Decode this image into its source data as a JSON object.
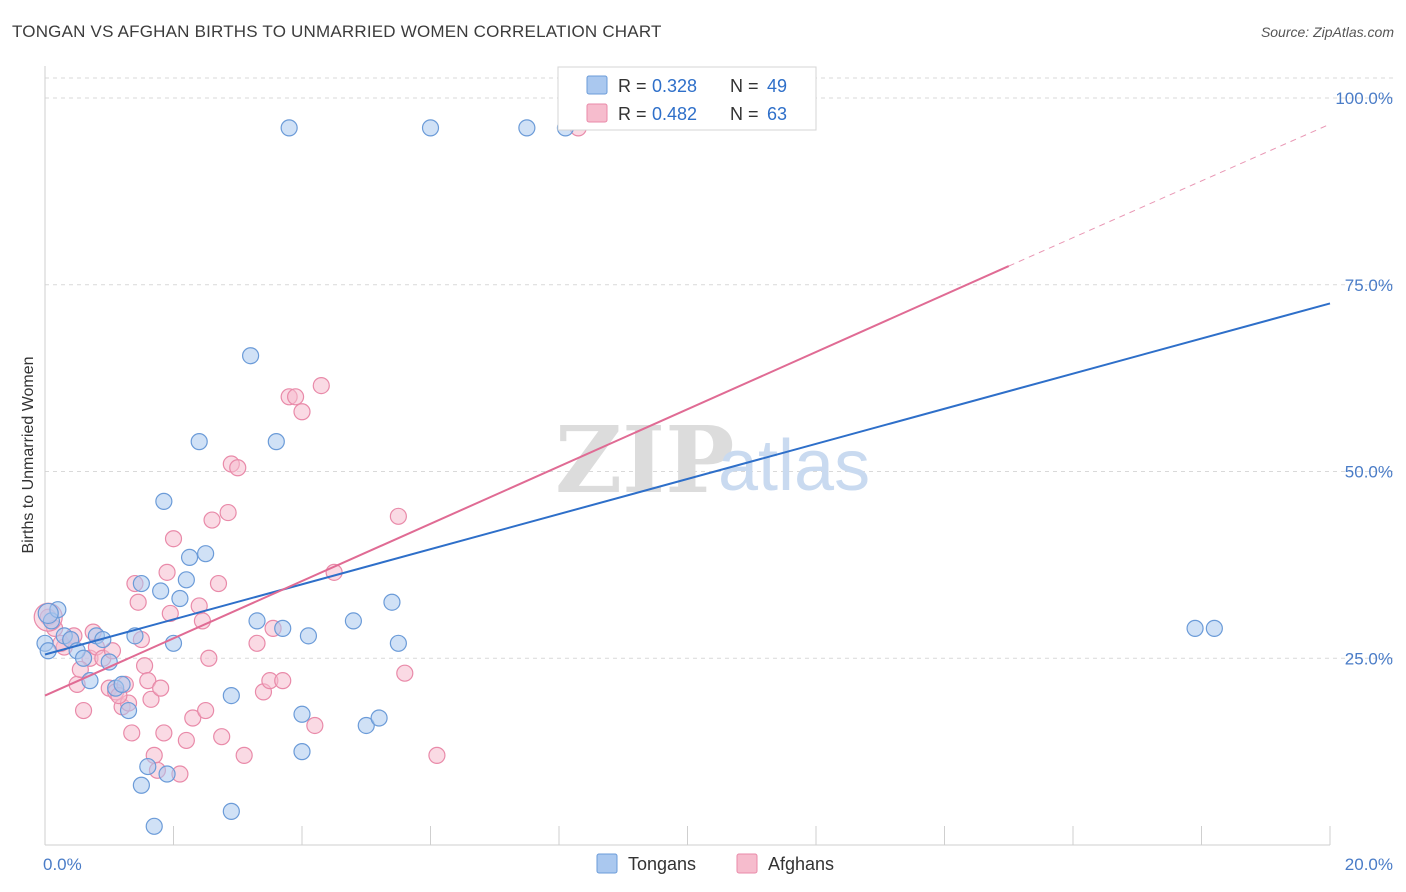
{
  "header": {
    "title": "TONGAN VS AFGHAN BIRTHS TO UNMARRIED WOMEN CORRELATION CHART",
    "source": "Source: ZipAtlas.com"
  },
  "watermark": {
    "zip": "ZIP",
    "atlas": "atlas"
  },
  "colors": {
    "tongans_fill": "#aac8ef",
    "tongans_stroke": "#6b9bd8",
    "tongans_line": "#2e6fc9",
    "afghans_fill": "#f6bccd",
    "afghans_stroke": "#e98aa9",
    "afghans_line": "#e06b94",
    "grid": "#d9d9d9",
    "tick_text": "#4a7cc7"
  },
  "legend_box": {
    "rows": [
      {
        "r_label": "R = ",
        "r_value": "0.328",
        "n_label": "N = ",
        "n_value": "49",
        "series": "tongans"
      },
      {
        "r_label": "R = ",
        "r_value": "0.482",
        "n_label": "N = ",
        "n_value": "63",
        "series": "afghans"
      }
    ]
  },
  "chart_data": {
    "type": "scatter",
    "title": "TONGAN VS AFGHAN BIRTHS TO UNMARRIED WOMEN CORRELATION CHART",
    "xlabel": "",
    "ylabel": "Births to Unmarried Women",
    "xlim": [
      0,
      20
    ],
    "ylim": [
      0,
      100
    ],
    "x_tick_labels": [
      "0.0%",
      "20.0%"
    ],
    "y_ticks": [
      25,
      50,
      75,
      100
    ],
    "y_tick_labels": [
      "25.0%",
      "50.0%",
      "75.0%",
      "100.0%"
    ],
    "grid": true,
    "legend": "bottom-center",
    "legend_labels": [
      "Tongans",
      "Afghans"
    ],
    "series": [
      {
        "name": "Tongans",
        "trend": {
          "x0": 0,
          "y0": 25.5,
          "x1": 20,
          "y1": 72.5,
          "dashed_from": null
        },
        "points": [
          [
            0.1,
            30
          ],
          [
            0.2,
            31.5
          ],
          [
            0.3,
            28
          ],
          [
            0.4,
            27.5
          ],
          [
            0.5,
            26
          ],
          [
            0.6,
            25
          ],
          [
            0.7,
            22
          ],
          [
            0.8,
            28
          ],
          [
            0.9,
            27.5
          ],
          [
            1.0,
            24.5
          ],
          [
            1.1,
            21
          ],
          [
            1.2,
            21.5
          ],
          [
            1.3,
            18
          ],
          [
            1.4,
            28
          ],
          [
            1.5,
            35
          ],
          [
            1.6,
            10.5
          ],
          [
            1.7,
            2.5
          ],
          [
            1.8,
            34
          ],
          [
            1.9,
            9.5
          ],
          [
            2.0,
            27
          ],
          [
            2.1,
            33
          ],
          [
            2.2,
            35.5
          ],
          [
            2.25,
            38.5
          ],
          [
            2.4,
            54
          ],
          [
            2.5,
            39
          ],
          [
            2.9,
            20
          ],
          [
            3.2,
            65.5
          ],
          [
            3.3,
            30
          ],
          [
            3.6,
            54
          ],
          [
            3.7,
            29
          ],
          [
            4.0,
            17.5
          ],
          [
            4.0,
            12.5
          ],
          [
            4.1,
            28
          ],
          [
            4.8,
            30
          ],
          [
            5.0,
            16
          ],
          [
            5.2,
            17
          ],
          [
            5.4,
            32.5
          ],
          [
            5.5,
            27
          ],
          [
            0.0,
            27
          ],
          [
            0.05,
            26
          ],
          [
            3.8,
            96
          ],
          [
            6.0,
            96
          ],
          [
            7.5,
            96
          ],
          [
            8.1,
            96
          ],
          [
            17.9,
            29
          ],
          [
            18.2,
            29
          ],
          [
            2.9,
            4.5
          ],
          [
            1.85,
            46
          ],
          [
            1.5,
            8
          ]
        ]
      },
      {
        "name": "Afghans",
        "trend": {
          "x0": 0,
          "y0": 20,
          "x1": 15,
          "y1": 77.5,
          "dashed_from": 15,
          "x2": 20,
          "y2": 96.5
        },
        "points": [
          [
            0.05,
            30.5
          ],
          [
            0.15,
            29
          ],
          [
            0.3,
            26.5
          ],
          [
            0.45,
            28
          ],
          [
            0.5,
            21.5
          ],
          [
            0.6,
            18
          ],
          [
            0.7,
            25
          ],
          [
            0.75,
            28.5
          ],
          [
            0.8,
            26.5
          ],
          [
            0.9,
            25
          ],
          [
            1.0,
            21
          ],
          [
            1.05,
            26
          ],
          [
            1.1,
            20.5
          ],
          [
            1.2,
            18.5
          ],
          [
            1.25,
            21.5
          ],
          [
            1.3,
            19
          ],
          [
            1.4,
            35
          ],
          [
            1.45,
            32.5
          ],
          [
            1.5,
            27.5
          ],
          [
            1.55,
            24
          ],
          [
            1.6,
            22
          ],
          [
            1.65,
            19.5
          ],
          [
            1.7,
            12
          ],
          [
            1.75,
            10
          ],
          [
            1.8,
            21
          ],
          [
            1.85,
            15
          ],
          [
            1.9,
            36.5
          ],
          [
            1.95,
            31
          ],
          [
            2.0,
            41
          ],
          [
            2.1,
            9.5
          ],
          [
            2.2,
            14
          ],
          [
            2.3,
            17
          ],
          [
            2.4,
            32
          ],
          [
            2.45,
            30
          ],
          [
            2.5,
            18
          ],
          [
            2.55,
            25
          ],
          [
            2.6,
            43.5
          ],
          [
            2.7,
            35
          ],
          [
            2.75,
            14.5
          ],
          [
            2.85,
            44.5
          ],
          [
            2.9,
            51
          ],
          [
            3.0,
            50.5
          ],
          [
            3.1,
            12
          ],
          [
            3.3,
            27
          ],
          [
            3.4,
            20.5
          ],
          [
            3.5,
            22
          ],
          [
            3.55,
            29
          ],
          [
            3.7,
            22
          ],
          [
            3.8,
            60
          ],
          [
            3.9,
            60
          ],
          [
            4.0,
            58
          ],
          [
            4.2,
            16
          ],
          [
            4.3,
            61.5
          ],
          [
            4.5,
            36.5
          ],
          [
            5.5,
            44
          ],
          [
            5.6,
            23
          ],
          [
            6.1,
            12
          ],
          [
            8.3,
            96
          ],
          [
            1.15,
            20
          ],
          [
            1.35,
            15
          ],
          [
            0.25,
            27
          ],
          [
            0.4,
            27.5
          ],
          [
            0.55,
            23.5
          ]
        ]
      }
    ]
  }
}
